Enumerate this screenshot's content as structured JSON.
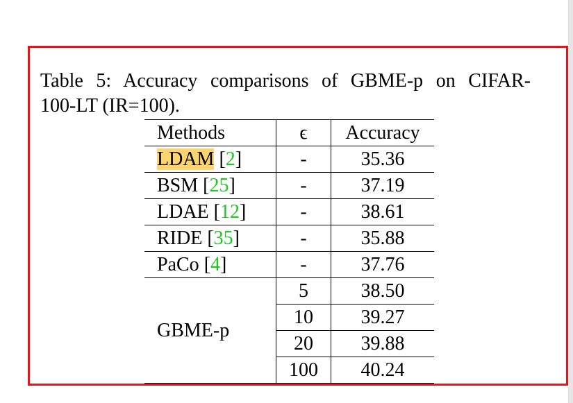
{
  "caption": {
    "line1": "Table 5:  Accuracy comparisons of GBME-p on CIFAR-",
    "line2": "100-LT (IR=100)."
  },
  "table": {
    "headers": {
      "method": "Methods",
      "epsilon": "ϵ",
      "accuracy": "Accuracy"
    },
    "rows": [
      {
        "method": "LDAM",
        "ref": "2",
        "epsilon": "-",
        "accuracy": "35.36",
        "highlighted": true
      },
      {
        "method": "BSM",
        "ref": "25",
        "epsilon": "-",
        "accuracy": "37.19"
      },
      {
        "method": "LDAE",
        "ref": "12",
        "epsilon": "-",
        "accuracy": "38.61"
      },
      {
        "method": "RIDE",
        "ref": "35",
        "epsilon": "-",
        "accuracy": "35.88"
      },
      {
        "method": "PaCo",
        "ref": "4",
        "epsilon": "-",
        "accuracy": "37.76"
      }
    ],
    "group": {
      "method": "GBME-p",
      "rows": [
        {
          "epsilon": "5",
          "accuracy": "38.50"
        },
        {
          "epsilon": "10",
          "accuracy": "39.27"
        },
        {
          "epsilon": "20",
          "accuracy": "39.88"
        },
        {
          "epsilon": "100",
          "accuracy": "40.24"
        }
      ]
    }
  },
  "colors": {
    "frame": "#e8141c",
    "reference_link": "#1ec81e",
    "highlight": "#fcd470"
  }
}
